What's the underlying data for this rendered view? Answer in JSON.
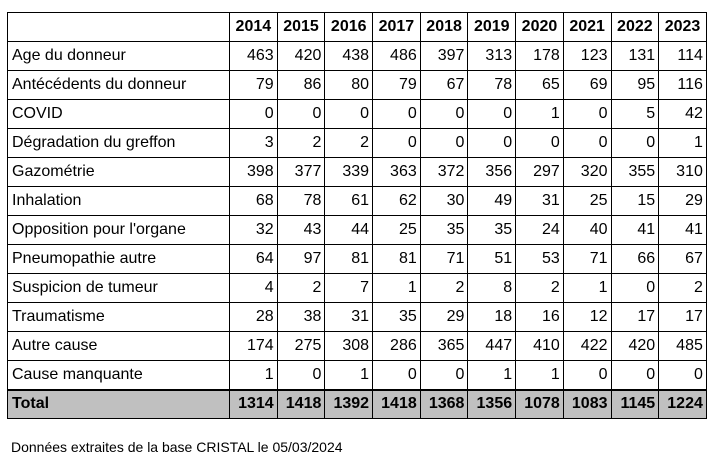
{
  "table": {
    "corner": "",
    "years": [
      "2014",
      "2015",
      "2016",
      "2017",
      "2018",
      "2019",
      "2020",
      "2021",
      "2022",
      "2023"
    ],
    "rows": [
      {
        "label": "Age du donneur",
        "values": [
          "463",
          "420",
          "438",
          "486",
          "397",
          "313",
          "178",
          "123",
          "131",
          "114"
        ]
      },
      {
        "label": "Antécédents du donneur",
        "values": [
          "79",
          "86",
          "80",
          "79",
          "67",
          "78",
          "65",
          "69",
          "95",
          "116"
        ]
      },
      {
        "label": "COVID",
        "values": [
          "0",
          "0",
          "0",
          "0",
          "0",
          "0",
          "1",
          "0",
          "5",
          "42"
        ]
      },
      {
        "label": "Dégradation du greffon",
        "values": [
          "3",
          "2",
          "2",
          "0",
          "0",
          "0",
          "0",
          "0",
          "0",
          "1"
        ]
      },
      {
        "label": "Gazométrie",
        "values": [
          "398",
          "377",
          "339",
          "363",
          "372",
          "356",
          "297",
          "320",
          "355",
          "310"
        ]
      },
      {
        "label": "Inhalation",
        "values": [
          "68",
          "78",
          "61",
          "62",
          "30",
          "49",
          "31",
          "25",
          "15",
          "29"
        ]
      },
      {
        "label": "Opposition pour l'organe",
        "values": [
          "32",
          "43",
          "44",
          "25",
          "35",
          "35",
          "24",
          "40",
          "41",
          "41"
        ]
      },
      {
        "label": "Pneumopathie autre",
        "values": [
          "64",
          "97",
          "81",
          "81",
          "71",
          "51",
          "53",
          "71",
          "66",
          "67"
        ]
      },
      {
        "label": "Suspicion de tumeur",
        "values": [
          "4",
          "2",
          "7",
          "1",
          "2",
          "8",
          "2",
          "1",
          "0",
          "2"
        ]
      },
      {
        "label": "Traumatisme",
        "values": [
          "28",
          "38",
          "31",
          "35",
          "29",
          "18",
          "16",
          "12",
          "17",
          "17"
        ]
      },
      {
        "label": "Autre cause",
        "values": [
          "174",
          "275",
          "308",
          "286",
          "365",
          "447",
          "410",
          "422",
          "420",
          "485"
        ]
      },
      {
        "label": "Cause manquante",
        "values": [
          "1",
          "0",
          "1",
          "0",
          "0",
          "1",
          "1",
          "0",
          "0",
          "0"
        ]
      }
    ],
    "total": {
      "label": "Total",
      "values": [
        "1314",
        "1418",
        "1392",
        "1418",
        "1368",
        "1356",
        "1078",
        "1083",
        "1145",
        "1224"
      ]
    }
  },
  "footnote": "Données extraites de la base CRISTAL le 05/03/2024"
}
